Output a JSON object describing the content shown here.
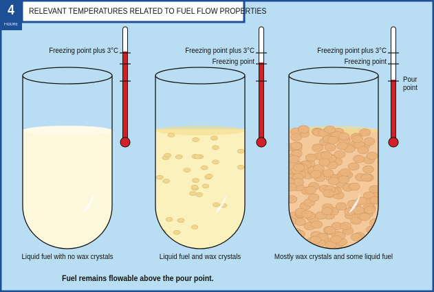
{
  "header": {
    "number": "4",
    "figure_label": "FIGURE",
    "title": "RELEVANT TEMPERATURES RELATED TO FUEL FLOW PROPERTIES"
  },
  "panels": [
    {
      "labels": [
        "Freezing point plus 3°C"
      ],
      "caption": "Liquid fuel with no wax crystals"
    },
    {
      "labels": [
        "Freezing point plus 3°C",
        "Freezing point"
      ],
      "caption": "Liquid fuel and wax crystals"
    },
    {
      "labels": [
        "Freezing point plus 3°C",
        "Freezing point",
        "Pour point"
      ],
      "caption": "Mostly wax crystals and some liquid fuel"
    }
  ],
  "footnote": "Fuel remains flowable above the pour point."
}
